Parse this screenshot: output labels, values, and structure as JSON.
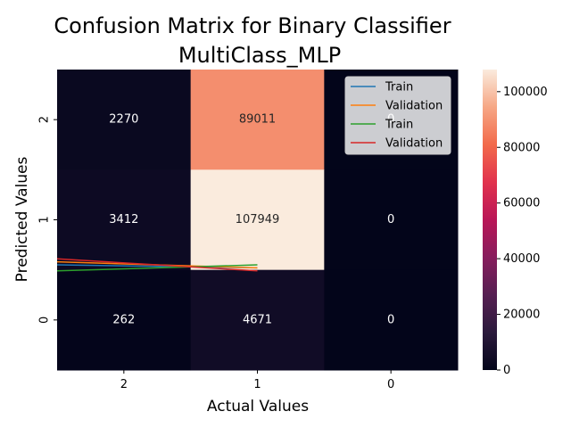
{
  "chart_data": {
    "type": "heatmap",
    "title_line1": "Confusion Matrix for Binary Classifier",
    "title_line2": "MultiClass_MLP",
    "xlabel": "Actual Values",
    "ylabel": "Predicted Values",
    "x_categories": [
      "2",
      "1",
      "0"
    ],
    "y_categories": [
      "2",
      "1",
      "0"
    ],
    "matrix": [
      [
        2270,
        89011,
        0
      ],
      [
        3412,
        107949,
        0
      ],
      [
        262,
        4671,
        0
      ]
    ],
    "colorbar": {
      "min": 0,
      "max": 107949,
      "ticks": [
        0,
        20000,
        40000,
        60000,
        80000,
        100000
      ]
    },
    "legend": {
      "placement": "upper-right",
      "entries": [
        {
          "name": "Train",
          "color": "#1f77b4"
        },
        {
          "name": "Validation",
          "color": "#ff7f0e"
        },
        {
          "name": "Train",
          "color": "#2ca02c"
        },
        {
          "name": "Validation",
          "color": "#d62728"
        }
      ]
    },
    "overlay_lines": [
      {
        "color": "#1f77b4",
        "y": [
          0.35,
          0.34
        ]
      },
      {
        "color": "#ff7f0e",
        "y": [
          0.36,
          0.34
        ]
      },
      {
        "color": "#2ca02c",
        "y": [
          0.33,
          0.35
        ]
      },
      {
        "color": "#d62728",
        "y": [
          0.37,
          0.33
        ]
      }
    ]
  }
}
